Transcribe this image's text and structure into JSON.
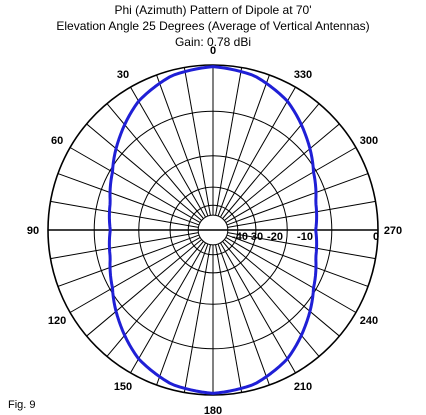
{
  "chart_data": {
    "type": "polar",
    "title": "Phi (Azimuth) Pattern of Dipole at 70'",
    "subtitle": "Elevation Angle 25 Degrees (Average of Vertical Antennas)",
    "gain": "Gain: 0.78 dBi",
    "figure_label": "Fig. 9",
    "azimuth_labels": [
      "0",
      "30",
      "60",
      "90",
      "120",
      "150",
      "180",
      "210",
      "240",
      "270",
      "300",
      "330"
    ],
    "radial_labels": [
      "-40",
      "30",
      "-20",
      "-10",
      "0"
    ],
    "radial_range_db": [
      -40,
      0
    ],
    "grid": true,
    "series_color": "#1f1fd6",
    "series": [
      {
        "azimuth_deg": [
          0,
          15,
          30,
          45,
          60,
          75,
          90,
          105,
          120,
          135,
          150,
          165,
          180,
          195,
          210,
          225,
          240,
          255,
          270,
          285,
          300,
          315,
          330,
          345
        ],
        "gain_db": [
          0,
          -0.3,
          -1.2,
          -2.6,
          -3.9,
          -4.7,
          -5.0,
          -4.7,
          -3.9,
          -2.6,
          -1.2,
          -0.3,
          0,
          -0.3,
          -1.2,
          -2.6,
          -3.9,
          -4.7,
          -5.0,
          -4.7,
          -3.9,
          -2.6,
          -1.2,
          -0.3
        ]
      }
    ]
  }
}
